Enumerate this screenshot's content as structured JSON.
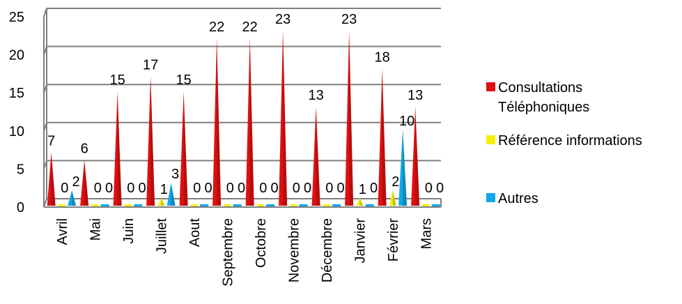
{
  "chart_data": {
    "type": "bar",
    "style": "3d-cone",
    "categories": [
      "Avril",
      "Mai",
      "Juin",
      "Juillet",
      "Aout",
      "Septembre",
      "Octobre",
      "Novembre",
      "Décembre",
      "Janvier",
      "Février",
      "Mars"
    ],
    "series": [
      {
        "name": "Consultations Téléphoniques",
        "color": "#e01010",
        "values": [
          7,
          6,
          15,
          17,
          15,
          22,
          22,
          23,
          13,
          23,
          18,
          13
        ]
      },
      {
        "name": "Référence informations",
        "color": "#f5f000",
        "values": [
          0,
          0,
          0,
          1,
          0,
          0,
          0,
          0,
          0,
          1,
          2,
          0
        ]
      },
      {
        "name": "Autres",
        "color": "#10a8e8",
        "values": [
          2,
          0,
          0,
          3,
          0,
          0,
          0,
          0,
          0,
          0,
          10,
          0
        ]
      }
    ],
    "ylim": [
      0,
      25
    ],
    "yticks": [
      0,
      5,
      10,
      15,
      20,
      25
    ],
    "grid": true,
    "legend_position": "right",
    "title": "",
    "xlabel": "",
    "ylabel": ""
  }
}
